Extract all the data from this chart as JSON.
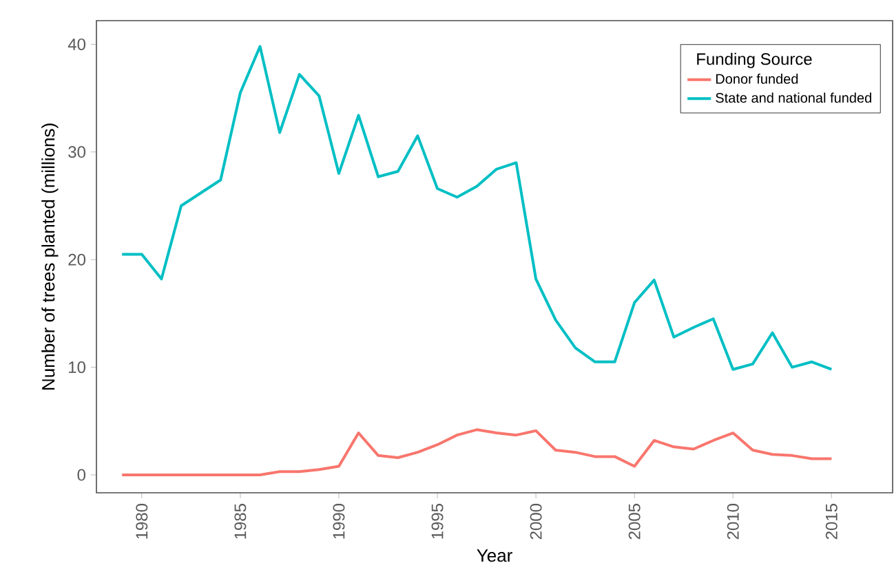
{
  "chart_data": {
    "type": "line",
    "xlabel": "Year",
    "ylabel": "Number of trees planted (millions)",
    "legend_title": "Funding Source",
    "x": [
      1979,
      1980,
      1981,
      1982,
      1983,
      1984,
      1985,
      1986,
      1987,
      1988,
      1989,
      1990,
      1991,
      1992,
      1993,
      1994,
      1995,
      1996,
      1997,
      1998,
      1999,
      2000,
      2001,
      2002,
      2003,
      2004,
      2005,
      2006,
      2007,
      2008,
      2009,
      2010,
      2011,
      2012,
      2013,
      2014,
      2015
    ],
    "series": [
      {
        "name": "Donor funded",
        "color": "#f8766d",
        "values": [
          0,
          0,
          0,
          0,
          0,
          0,
          0,
          0,
          0.3,
          0.3,
          0.5,
          0.8,
          3.9,
          1.8,
          1.6,
          2.1,
          2.8,
          3.7,
          4.2,
          3.9,
          3.7,
          4.1,
          2.3,
          2.1,
          1.7,
          1.7,
          0.8,
          3.2,
          2.6,
          2.4,
          3.2,
          3.9,
          2.3,
          1.9,
          1.8,
          1.5,
          1.5
        ]
      },
      {
        "name": "State and national funded",
        "color": "#00bfc4",
        "values": [
          20.5,
          20.5,
          18.2,
          25,
          26.2,
          27.4,
          35.5,
          39.8,
          31.8,
          37.2,
          35.2,
          28,
          33.4,
          27.7,
          28.2,
          31.5,
          26.6,
          25.8,
          26.8,
          28.4,
          29,
          18.2,
          14.4,
          11.8,
          10.5,
          10.5,
          16,
          18.1,
          12.8,
          13.7,
          14.5,
          9.8,
          10.3,
          13.2,
          10,
          10.5,
          9.8
        ]
      }
    ],
    "xlim": [
      1977.7,
      2018.1
    ],
    "ylim": [
      -1.66,
      42.2
    ],
    "xticks": [
      1980,
      1985,
      1990,
      1995,
      2000,
      2005,
      2010,
      2015
    ],
    "yticks": [
      0,
      10,
      20,
      30,
      40
    ],
    "grid": false,
    "legend": "top right",
    "marker": "none",
    "line_style": "solid"
  }
}
